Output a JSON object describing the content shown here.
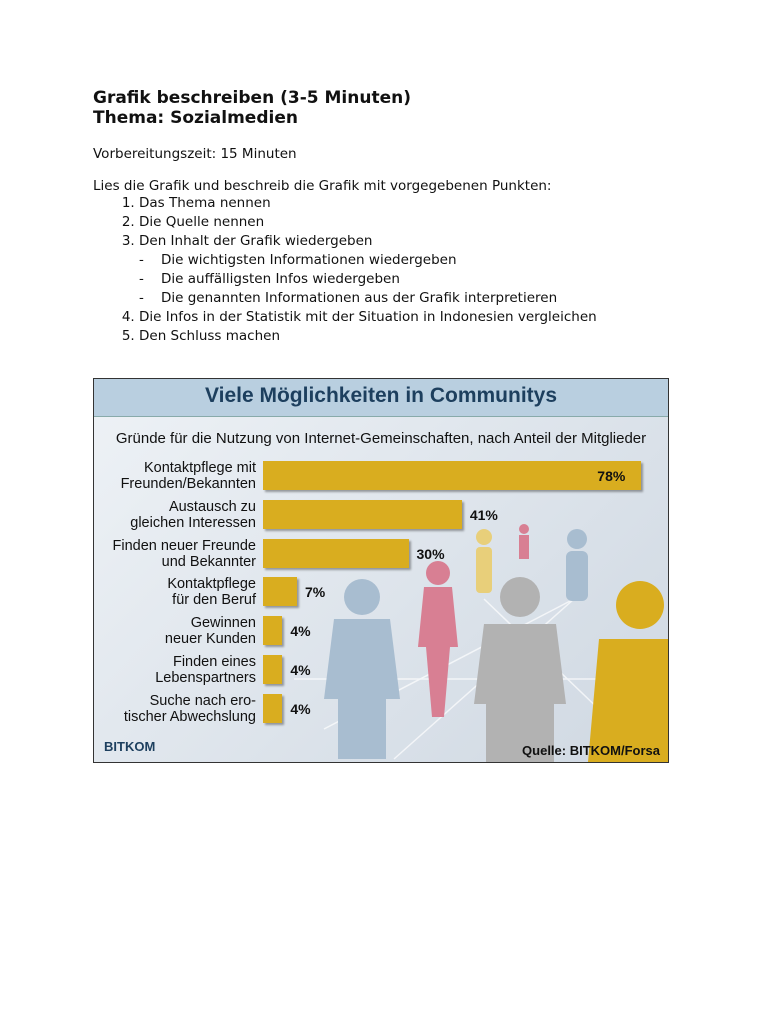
{
  "document": {
    "heading": [
      "Grafik beschreiben (3-5 Minuten)",
      "Thema: Sozialmedien"
    ],
    "prep_time": "Vorbereitungszeit: 15 Minuten",
    "intro": "Lies die Grafik und beschreib die Grafik  mit vorgegebenen  Punkten:",
    "items": [
      {
        "text": "Das Thema nennen"
      },
      {
        "text": "Die Quelle nennen"
      },
      {
        "text": "Den Inhalt der Grafik wiedergeben",
        "subitems": [
          "Die wichtigsten Informationen wiedergeben",
          "Die auffälligsten Infos wiedergeben",
          "Die genannten Informationen aus der Grafik interpretieren"
        ]
      },
      {
        "text": "Die Infos in der Statistik mit der Situation in Indonesien vergleichen"
      },
      {
        "text": "Den Schluss machen"
      }
    ]
  },
  "chart_data": {
    "type": "bar",
    "orientation": "horizontal",
    "title": "Viele Möglichkeiten in Communitys",
    "subtitle": "Gründe für die Nutzung von Internet-Gemeinschaften, nach Anteil der Mitglieder",
    "categories": [
      "Kontaktpflege mit\nFreunden/Bekannten",
      "Austausch zu\ngleichen Interessen",
      "Finden neuer Freunde\nund Bekannter",
      "Kontaktpflege\nfür den Beruf",
      "Gewinnen\nneuer Kunden",
      "Finden eines\nLebenspartners",
      "Suche nach ero-\ntischer Abwechslung"
    ],
    "values": [
      78,
      41,
      30,
      7,
      4,
      4,
      4
    ],
    "value_labels": [
      "78%",
      "41%",
      "30%",
      "7%",
      "4%",
      "4%",
      "4%"
    ],
    "color": "#d9ad1f",
    "logo": "BITKOM",
    "source": "Quelle: BITKOM/Forsa"
  }
}
